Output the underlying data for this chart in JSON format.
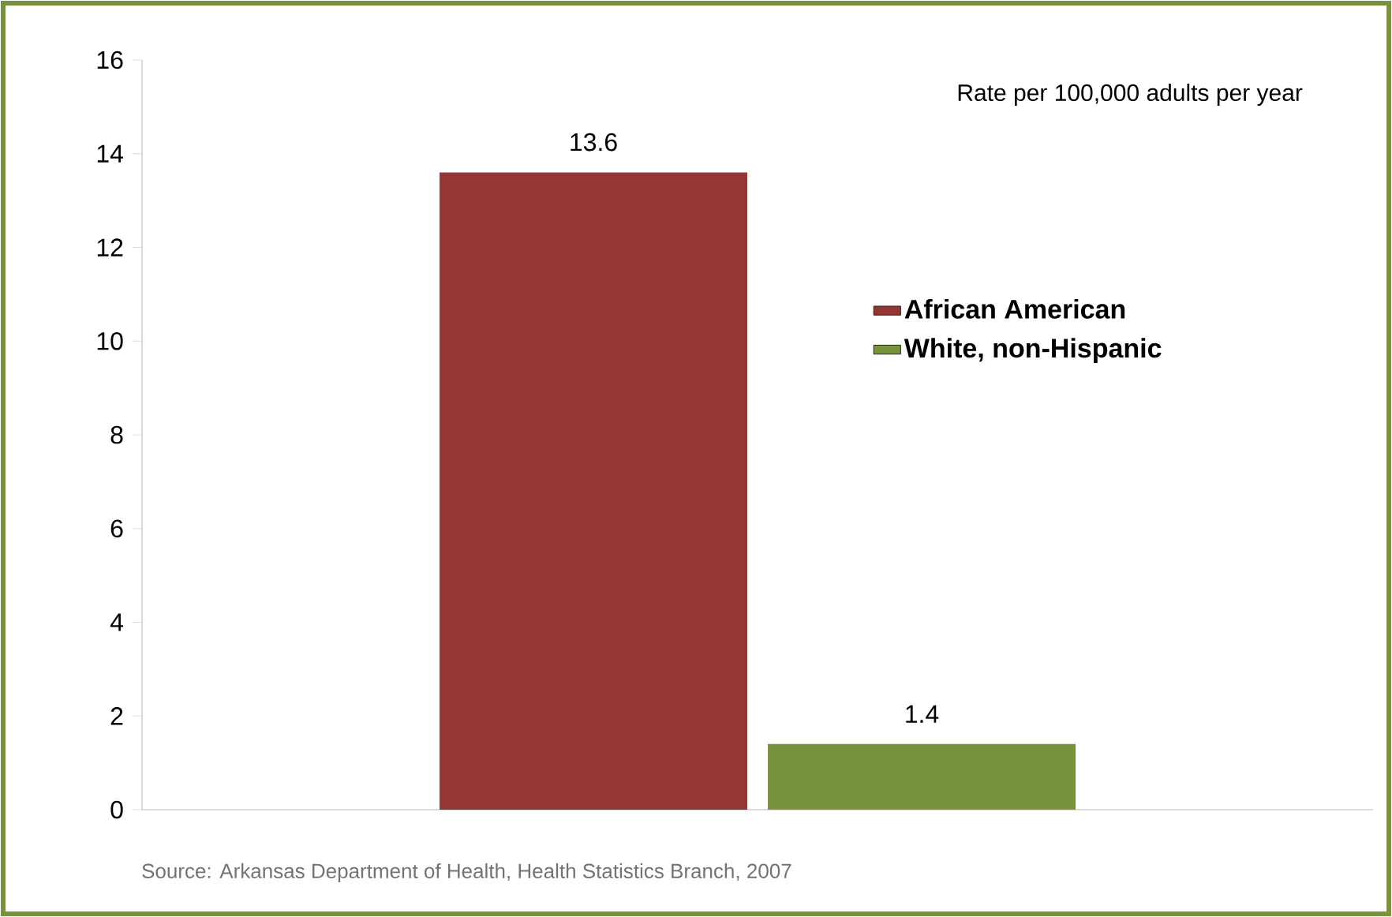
{
  "chart_data": {
    "type": "bar",
    "subtitle": "Rate per 100,000 adults per year",
    "categories": [
      null
    ],
    "series": [
      {
        "name": "African American",
        "color": "#943634",
        "values": [
          13.6
        ]
      },
      {
        "name": "White, non-Hispanic",
        "color": "#77933c",
        "values": [
          1.4
        ]
      }
    ],
    "ylim": [
      0,
      16
    ],
    "yticks": [
      0,
      2,
      4,
      6,
      8,
      10,
      12,
      14,
      16
    ],
    "data_labels": true,
    "legend": "right",
    "annotations": [
      "Source: Arkansas Department of Health, Health Statistics Branch, 2007"
    ]
  }
}
